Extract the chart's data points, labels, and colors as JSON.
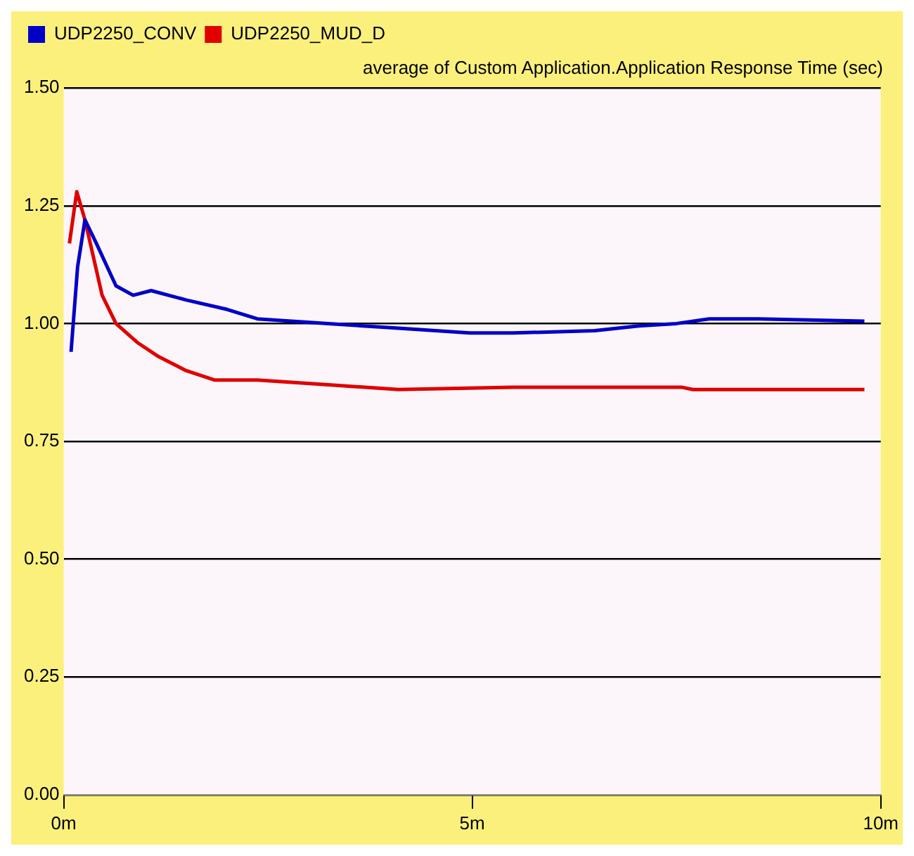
{
  "chart_data": {
    "type": "line",
    "title": "average of Custom Application.Application Response Time (sec)",
    "xlim": [
      0,
      10
    ],
    "xticks": [
      {
        "value": 0,
        "label": "0m"
      },
      {
        "value": 5,
        "label": "5m"
      },
      {
        "value": 10,
        "label": "10m"
      }
    ],
    "ylim": [
      0,
      1.5
    ],
    "yticks": [
      {
        "value": 0,
        "label": "0.00"
      },
      {
        "value": 0.25,
        "label": "0.25"
      },
      {
        "value": 0.5,
        "label": "0.50"
      },
      {
        "value": 0.75,
        "label": "0.75"
      },
      {
        "value": 1,
        "label": "1.00"
      },
      {
        "value": 1.25,
        "label": "1.25"
      },
      {
        "value": 1.5,
        "label": "1.50"
      }
    ],
    "grid": "y",
    "legend": "top left",
    "marker": "none",
    "line_style": "solid",
    "series": [
      {
        "name": "UDP2250_CONV",
        "color": "#0000c8",
        "x": [
          0.09,
          0.17,
          0.26,
          0.4,
          0.64,
          0.85,
          1.07,
          1.5,
          2.0,
          2.37,
          3.24,
          4.1,
          4.97,
          5.5,
          6.5,
          7.04,
          7.5,
          7.9,
          8.5,
          9.8
        ],
        "values": [
          0.94,
          1.12,
          1.22,
          1.17,
          1.08,
          1.06,
          1.07,
          1.05,
          1.03,
          1.01,
          1.0,
          0.99,
          0.98,
          0.98,
          0.985,
          0.995,
          1.0,
          1.01,
          1.01,
          1.005
        ]
      },
      {
        "name": "UDP2250_MUD_D",
        "color": "#e00000",
        "x": [
          0.07,
          0.16,
          0.26,
          0.47,
          0.64,
          0.9,
          1.16,
          1.5,
          1.85,
          2.37,
          3.24,
          4.1,
          5.5,
          7.56,
          7.7,
          9.8
        ],
        "values": [
          1.17,
          1.28,
          1.22,
          1.06,
          1.0,
          0.96,
          0.93,
          0.9,
          0.88,
          0.88,
          0.87,
          0.86,
          0.865,
          0.865,
          0.86,
          0.86
        ]
      }
    ]
  }
}
